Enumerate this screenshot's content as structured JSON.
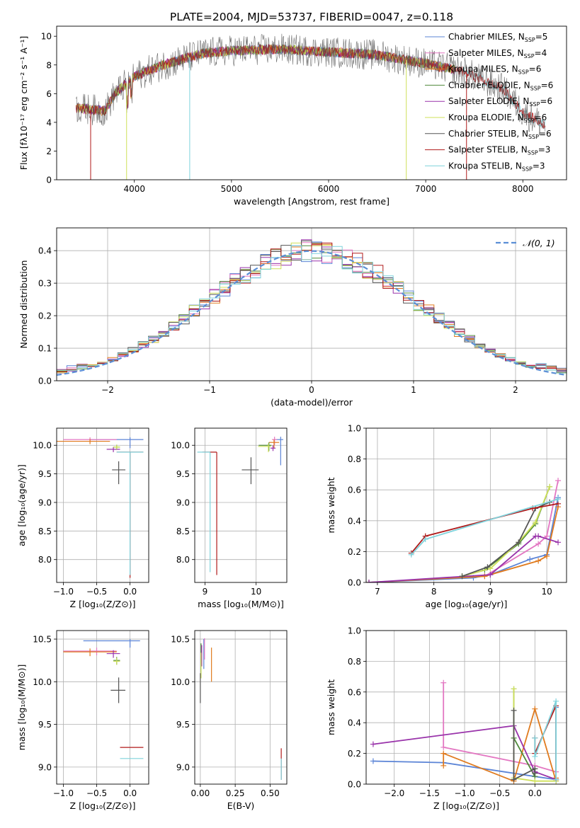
{
  "figure_title": "PLATE=2004, MJD=53737, FIBERID=0047, z=0.118",
  "colors": {
    "Chabrier MILES": "#5b84d6",
    "Salpeter MILES": "#e377c2",
    "Kroupa MILES": "#e07b1f",
    "Chabrier ELODIE": "#4f8a3a",
    "Salpeter ELODIE": "#9933aa",
    "Kroupa ELODIE": "#cfe05a",
    "Chabrier STELIB": "#555555",
    "Salpeter STELIB": "#b01a1a",
    "Kroupa STELIB": "#7fd3dc",
    "gaussian": "#5b8fd6"
  },
  "chart_data": [
    {
      "type": "line",
      "id": "spectrum",
      "title": "PLATE=2004, MJD=53737, FIBERID=0047, z=0.118",
      "xlabel": "wavelength [Angstrom, rest frame]",
      "ylabel": "Flux [fλ10⁻¹⁷ erg cm⁻² s⁻¹ A⁻¹]",
      "xlim": [
        3200,
        8450
      ],
      "ylim": [
        0,
        10.7
      ],
      "xticks": [
        4000,
        5000,
        6000,
        7000,
        8000
      ],
      "yticks": [
        0,
        2,
        4,
        6,
        8,
        10
      ],
      "grid": false,
      "legend_position": "top-right",
      "legend": [
        {
          "label": "Chabrier MILES, N",
          "sub": "SSP",
          "suffix": "=5"
        },
        {
          "label": "Salpeter MILES, N",
          "sub": "SSP",
          "suffix": "=4"
        },
        {
          "label": "Kroupa MILES, N",
          "sub": "SSP",
          "suffix": "=6"
        },
        {
          "label": "Chabrier ELODIE, N",
          "sub": "SSP",
          "suffix": "=6"
        },
        {
          "label": "Salpeter ELODIE, N",
          "sub": "SSP",
          "suffix": "=6"
        },
        {
          "label": "Kroupa ELODIE, N",
          "sub": "SSP",
          "suffix": "=6"
        },
        {
          "label": "Chabrier STELIB, N",
          "sub": "SSP",
          "suffix": "=6"
        },
        {
          "label": "Salpeter STELIB, N",
          "sub": "SSP",
          "suffix": "=3"
        },
        {
          "label": "Kroupa STELIB, N",
          "sub": "SSP",
          "suffix": "=3"
        }
      ],
      "continuum": [
        [
          3400,
          5.0
        ],
        [
          3700,
          4.8
        ],
        [
          3800,
          6.0
        ],
        [
          4000,
          7.2
        ],
        [
          4300,
          8.0
        ],
        [
          4700,
          8.8
        ],
        [
          5000,
          9.0
        ],
        [
          5500,
          9.1
        ],
        [
          6000,
          8.9
        ],
        [
          6500,
          8.7
        ],
        [
          7000,
          8.1
        ],
        [
          7400,
          7.5
        ],
        [
          7800,
          6.3
        ],
        [
          8000,
          4.7
        ],
        [
          8200,
          3.9
        ]
      ],
      "absorption_spikes": [
        [
          3550,
          0
        ],
        [
          3920,
          0
        ],
        [
          4570,
          0
        ],
        [
          6800,
          0
        ],
        [
          7420,
          0
        ]
      ]
    },
    {
      "type": "histogram",
      "id": "residuals",
      "xlabel": "(data-model)/error",
      "ylabel": "Normed distribution",
      "xlim": [
        -2.5,
        2.5
      ],
      "ylim": [
        0,
        0.47
      ],
      "xticks": [
        -2,
        -1,
        0,
        1,
        2
      ],
      "yticks": [
        0.0,
        0.1,
        0.2,
        0.3,
        0.4
      ],
      "grid": true,
      "bin_width": 0.1,
      "reference_curve": {
        "label": "𝒩(0, 1)",
        "style": "dashed",
        "mean": 0,
        "sigma": 1
      },
      "legend_position": "top-right"
    },
    {
      "type": "scatter",
      "id": "age-vs-Z",
      "xlabel": "Z [log₁₀(Z/Z⊙)]",
      "ylabel": "age  [log₁₀(age/yr)]",
      "xlim": [
        -1.1,
        0.28
      ],
      "ylim": [
        7.6,
        10.3
      ],
      "xticks": [
        -1.0,
        -0.5,
        0.0
      ],
      "yticks": [
        8.0,
        8.5,
        9.0,
        9.5,
        10.0
      ],
      "grid": true,
      "points": [
        {
          "series": "Chabrier MILES",
          "x": 0.0,
          "xerr": [
            0.6,
            0.2
          ],
          "y": 10.1,
          "yerr": [
            0.15,
            0.04
          ]
        },
        {
          "series": "Salpeter MILES",
          "x": -0.6,
          "xerr": [
            0.4,
            0.4
          ],
          "y": 10.1,
          "yerr": [
            0.05,
            0.04
          ]
        },
        {
          "series": "Kroupa MILES",
          "x": -0.6,
          "xerr": [
            0.5,
            0.3
          ],
          "y": 10.07,
          "yerr": [
            0.05,
            0.04
          ]
        },
        {
          "series": "Chabrier ELODIE",
          "x": -0.2,
          "xerr": [
            0.05,
            0.05
          ],
          "y": 9.97,
          "yerr": [
            0.05,
            0.04
          ]
        },
        {
          "series": "Salpeter ELODIE",
          "x": -0.25,
          "xerr": [
            0.1,
            0.1
          ],
          "y": 9.93,
          "yerr": [
            0.05,
            0.04
          ]
        },
        {
          "series": "Kroupa ELODIE",
          "x": -0.2,
          "xerr": [
            0.05,
            0.05
          ],
          "y": 9.97,
          "yerr": [
            0.04,
            0.04
          ]
        },
        {
          "series": "Chabrier STELIB",
          "x": -0.17,
          "xerr": [
            0.1,
            0.1
          ],
          "y": 9.57,
          "yerr": [
            0.25,
            0.15
          ]
        },
        {
          "series": "Salpeter STELIB",
          "x": 0.0,
          "xerr": [
            0.2,
            0.2
          ],
          "y": 9.88,
          "yerr": [
            2.2,
            0.0
          ]
        },
        {
          "series": "Kroupa STELIB",
          "x": 0.0,
          "xerr": [
            0.2,
            0.2
          ],
          "y": 9.88,
          "yerr": [
            2.15,
            0.0
          ]
        }
      ]
    },
    {
      "type": "scatter",
      "id": "age-vs-mass",
      "xlabel": "mass [log₁₀(M/M⊙)]",
      "ylabel": "",
      "xlim": [
        8.8,
        10.6
      ],
      "ylim": [
        7.6,
        10.3
      ],
      "xticks": [
        9,
        10
      ],
      "yticks": [
        8.0,
        8.5,
        9.0,
        9.5,
        10.0
      ],
      "grid": true,
      "points": [
        {
          "series": "Chabrier MILES",
          "x": 10.48,
          "xerr": [
            0.1,
            0.05
          ],
          "y": 10.1,
          "yerr": [
            0.45,
            0.05
          ]
        },
        {
          "series": "Salpeter MILES",
          "x": 10.36,
          "xerr": [
            0.05,
            0.05
          ],
          "y": 10.1,
          "yerr": [
            0.1,
            0.05
          ]
        },
        {
          "series": "Kroupa MILES",
          "x": 10.35,
          "xerr": [
            0.1,
            0.1
          ],
          "y": 10.05,
          "yerr": [
            0.1,
            0.05
          ]
        },
        {
          "series": "Chabrier ELODIE",
          "x": 10.25,
          "xerr": [
            0.2,
            0.05
          ],
          "y": 10.0,
          "yerr": [
            0.1,
            0.05
          ]
        },
        {
          "series": "Salpeter ELODIE",
          "x": 10.33,
          "xerr": [
            0.05,
            0.05
          ],
          "y": 9.95,
          "yerr": [
            0.05,
            0.05
          ]
        },
        {
          "series": "Kroupa ELODIE",
          "x": 10.24,
          "xerr": [
            0.2,
            0.05
          ],
          "y": 9.98,
          "yerr": [
            0.1,
            0.05
          ]
        },
        {
          "series": "Chabrier STELIB",
          "x": 9.9,
          "xerr": [
            0.18,
            0.15
          ],
          "y": 9.57,
          "yerr": [
            0.25,
            0.22
          ]
        },
        {
          "series": "Salpeter STELIB",
          "x": 9.23,
          "xerr": [
            0.28,
            0.0
          ],
          "y": 9.88,
          "yerr": [
            2.15,
            0.0
          ]
        },
        {
          "series": "Kroupa STELIB",
          "x": 9.1,
          "xerr": [
            0.25,
            0.0
          ],
          "y": 9.88,
          "yerr": [
            2.1,
            0.0
          ]
        }
      ]
    },
    {
      "type": "line",
      "id": "massweight-vs-age",
      "xlabel": "age  [log₁₀(age/yr)]",
      "ylabel": "mass weight",
      "xlim": [
        6.8,
        10.35
      ],
      "ylim": [
        0,
        1
      ],
      "xticks": [
        7,
        8,
        9,
        10
      ],
      "yticks": [
        0.0,
        0.2,
        0.4,
        0.6,
        0.8,
        1.0
      ],
      "grid": true,
      "series": [
        {
          "name": "Chabrier MILES",
          "x": [
            6.85,
            8.7,
            9.0,
            9.7,
            10.0,
            10.2
          ],
          "y": [
            0.0,
            0.03,
            0.05,
            0.15,
            0.18,
            0.55
          ]
        },
        {
          "name": "Salpeter MILES",
          "x": [
            8.9,
            9.85,
            10.0,
            10.2
          ],
          "y": [
            0.04,
            0.25,
            0.3,
            0.66
          ]
        },
        {
          "name": "Kroupa MILES",
          "x": [
            6.85,
            8.9,
            9.85,
            10.0,
            10.2
          ],
          "y": [
            0.0,
            0.04,
            0.14,
            0.17,
            0.49
          ]
        },
        {
          "name": "Chabrier ELODIE",
          "x": [
            8.5,
            8.9,
            9.5,
            9.8,
            10.05
          ],
          "y": [
            0.04,
            0.08,
            0.25,
            0.38,
            0.62
          ]
        },
        {
          "name": "Salpeter ELODIE",
          "x": [
            6.85,
            9.0,
            9.8,
            9.85,
            10.2
          ],
          "y": [
            0.0,
            0.05,
            0.3,
            0.3,
            0.26
          ]
        },
        {
          "name": "Kroupa ELODIE",
          "x": [
            8.5,
            9.0,
            9.5,
            9.8,
            10.05
          ],
          "y": [
            0.04,
            0.09,
            0.26,
            0.39,
            0.62
          ]
        },
        {
          "name": "Chabrier STELIB",
          "x": [
            8.5,
            8.95,
            9.5,
            9.8,
            10.05
          ],
          "y": [
            0.04,
            0.1,
            0.26,
            0.48,
            0.52
          ]
        },
        {
          "name": "Salpeter STELIB",
          "x": [
            7.6,
            7.85,
            9.75,
            10.2
          ],
          "y": [
            0.19,
            0.3,
            0.48,
            0.51
          ]
        },
        {
          "name": "Kroupa STELIB",
          "x": [
            7.6,
            7.85,
            10.2
          ],
          "y": [
            0.18,
            0.28,
            0.54
          ]
        }
      ]
    },
    {
      "type": "scatter",
      "id": "mass-vs-Z",
      "xlabel": "Z [log₁₀(Z/Z⊙)]",
      "ylabel": "mass [log₁₀(M/M⊙)]",
      "xlim": [
        -1.1,
        0.28
      ],
      "ylim": [
        8.8,
        10.6
      ],
      "xticks": [
        -1.0,
        -0.5,
        0.0
      ],
      "yticks": [
        9.0,
        9.5,
        10.0,
        10.5
      ],
      "grid": true,
      "points": [
        {
          "series": "Chabrier MILES",
          "x": 0.0,
          "xerr": [
            0.7,
            0.15
          ],
          "y": 10.48,
          "yerr": [
            0.08,
            0.02
          ]
        },
        {
          "series": "Salpeter MILES",
          "x": -0.5,
          "xerr": [
            0.5,
            0.3
          ],
          "y": 10.36,
          "yerr": [
            0.05,
            0.04
          ]
        },
        {
          "series": "Kroupa MILES",
          "x": -0.6,
          "xerr": [
            0.4,
            0.4
          ],
          "y": 10.35,
          "yerr": [
            0.05,
            0.04
          ]
        },
        {
          "series": "Chabrier ELODIE",
          "x": -0.2,
          "xerr": [
            0.05,
            0.05
          ],
          "y": 10.25,
          "yerr": [
            0.05,
            0.04
          ]
        },
        {
          "series": "Salpeter ELODIE",
          "x": -0.25,
          "xerr": [
            0.1,
            0.1
          ],
          "y": 10.33,
          "yerr": [
            0.05,
            0.04
          ]
        },
        {
          "series": "Kroupa ELODIE",
          "x": -0.2,
          "xerr": [
            0.05,
            0.05
          ],
          "y": 10.24,
          "yerr": [
            0.04,
            0.04
          ]
        },
        {
          "series": "Chabrier STELIB",
          "x": -0.17,
          "xerr": [
            0.12,
            0.1
          ],
          "y": 9.9,
          "yerr": [
            0.15,
            0.15
          ]
        },
        {
          "series": "Salpeter STELIB",
          "x": 0.0,
          "xerr": [
            0.15,
            0.2
          ],
          "y": 9.23,
          "yerr": [
            0.0,
            0.0
          ]
        },
        {
          "series": "Kroupa STELIB",
          "x": 0.0,
          "xerr": [
            0.15,
            0.2
          ],
          "y": 9.1,
          "yerr": [
            0.0,
            0.0
          ]
        }
      ]
    },
    {
      "type": "scatter",
      "id": "mass-vs-EBV",
      "xlabel": "E(B-V)",
      "ylabel": "",
      "xlim": [
        -0.04,
        0.62
      ],
      "ylim": [
        8.8,
        10.6
      ],
      "xticks": [
        0.0,
        0.25,
        0.5
      ],
      "xticklabels": [
        "0.00",
        "0.25",
        "0.50"
      ],
      "yticks": [
        9.0,
        9.5,
        10.0,
        10.5
      ],
      "grid": true,
      "points": [
        {
          "series": "Chabrier MILES",
          "x": 0.025,
          "xerr": [
            0.0,
            0.0
          ],
          "y": 10.35,
          "yerr": [
            0.2,
            0.15
          ]
        },
        {
          "series": "Salpeter MILES",
          "x": 0.03,
          "xerr": [
            0.0,
            0.0
          ],
          "y": 10.36,
          "yerr": [
            0.1,
            0.15
          ]
        },
        {
          "series": "Kroupa MILES",
          "x": 0.08,
          "xerr": [
            0.0,
            0.0
          ],
          "y": 10.2,
          "yerr": [
            0.2,
            0.2
          ]
        },
        {
          "series": "Chabrier ELODIE",
          "x": 0.005,
          "xerr": [
            0.0,
            0.0
          ],
          "y": 10.25,
          "yerr": [
            0.2,
            0.2
          ]
        },
        {
          "series": "Salpeter ELODIE",
          "x": 0.01,
          "xerr": [
            0.0,
            0.0
          ],
          "y": 10.33,
          "yerr": [
            0.15,
            0.1
          ]
        },
        {
          "series": "Kroupa ELODIE",
          "x": 0.005,
          "xerr": [
            0.0,
            0.0
          ],
          "y": 10.24,
          "yerr": [
            0.2,
            0.1
          ]
        },
        {
          "series": "Chabrier STELIB",
          "x": 0.0,
          "xerr": [
            0.0,
            0.0
          ],
          "y": 9.9,
          "yerr": [
            0.15,
            0.2
          ]
        },
        {
          "series": "Salpeter STELIB",
          "x": 0.58,
          "xerr": [
            0.0,
            0.0
          ],
          "y": 9.1,
          "yerr": [
            0.25,
            0.12
          ]
        },
        {
          "series": "Kroupa STELIB",
          "x": 0.58,
          "xerr": [
            0.0,
            0.0
          ],
          "y": 9.05,
          "yerr": [
            0.2,
            0.05
          ]
        }
      ]
    },
    {
      "type": "line",
      "id": "massweight-vs-Z",
      "xlabel": "Z [log₁₀(Z/Z⊙)]",
      "ylabel": "mass weight",
      "xlim": [
        -2.4,
        0.45
      ],
      "ylim": [
        0,
        1
      ],
      "xticks": [
        -2.0,
        -1.5,
        -1.0,
        -0.5,
        0.0
      ],
      "yticks": [
        0.0,
        0.2,
        0.4,
        0.6,
        0.8,
        1.0
      ],
      "grid": true,
      "series": [
        {
          "name": "Chabrier MILES",
          "x": [
            -2.3,
            -1.3,
            0.0,
            0.3,
            0.3
          ],
          "y": [
            0.15,
            0.14,
            0.05,
            0.03,
            0.5
          ]
        },
        {
          "name": "Salpeter MILES",
          "x": [
            -1.3,
            -1.3,
            0.0,
            0.3
          ],
          "y": [
            0.66,
            0.24,
            0.12,
            0.08
          ]
        },
        {
          "name": "Kroupa MILES",
          "x": [
            -1.3,
            -1.3,
            -0.3,
            0.0,
            0.3,
            0.3
          ],
          "y": [
            0.12,
            0.2,
            0.02,
            0.49,
            0.02,
            0.04
          ]
        },
        {
          "name": "Chabrier ELODIE",
          "x": [
            -0.3,
            -0.3,
            0.0,
            0.0
          ],
          "y": [
            0.62,
            0.3,
            0.05,
            0.1
          ]
        },
        {
          "name": "Salpeter ELODIE",
          "x": [
            -2.3,
            -0.3,
            0.0,
            0.3
          ],
          "y": [
            0.26,
            0.38,
            0.08,
            0.03
          ]
        },
        {
          "name": "Kroupa ELODIE",
          "x": [
            -0.3,
            -0.3,
            0.0,
            0.3
          ],
          "y": [
            0.62,
            0.04,
            0.02,
            0.02
          ]
        },
        {
          "name": "Chabrier STELIB",
          "x": [
            -0.3,
            -0.3,
            0.0,
            0.0
          ],
          "y": [
            0.48,
            0.03,
            0.1,
            0.07
          ]
        },
        {
          "name": "Salpeter STELIB",
          "x": [
            0.0,
            0.0,
            0.3,
            0.3
          ],
          "y": [
            0.3,
            0.2,
            0.51,
            0.03
          ]
        },
        {
          "name": "Kroupa STELIB",
          "x": [
            0.0,
            0.0,
            0.3,
            0.3
          ],
          "y": [
            0.3,
            0.18,
            0.54,
            0.03
          ]
        }
      ]
    }
  ]
}
